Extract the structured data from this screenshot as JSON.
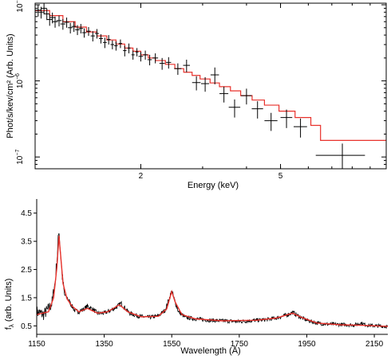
{
  "chart_data": [
    {
      "type": "scatter",
      "xlabel": "Energy (keV)",
      "ylabel": "Phot/s/kev/cm² (Arb. Units)",
      "xscale": "log",
      "yscale": "log",
      "xlim": [
        1.0,
        10.0
      ],
      "ylim": [
        7e-08,
        1.05e-05
      ],
      "x_ticks": [
        {
          "value": 2,
          "label": "2"
        },
        {
          "value": 5,
          "label": "5"
        }
      ],
      "y_ticks": [
        {
          "value": 1e-05,
          "base": "10",
          "exp": "−5"
        },
        {
          "value": 1e-06,
          "base": "10",
          "exp": "−6"
        },
        {
          "value": 1e-07,
          "base": "10",
          "exp": "−7"
        }
      ],
      "grid": false,
      "series": [
        {
          "kind": "data",
          "color": "#000000",
          "points": [
            [
              1.02,
              8.5e-06,
              0.02,
              1.5e-06
            ],
            [
              1.04,
              8e-06,
              0.02,
              1.4e-06
            ],
            [
              1.06,
              9e-06,
              0.02,
              1.5e-06
            ],
            [
              1.08,
              7.6e-06,
              0.02,
              1.3e-06
            ],
            [
              1.1,
              6.4e-06,
              0.02,
              1.1e-06
            ],
            [
              1.12,
              6.8e-06,
              0.02,
              1.1e-06
            ],
            [
              1.14,
              6e-06,
              0.02,
              1e-06
            ],
            [
              1.17,
              6.2e-06,
              0.02,
              1e-06
            ],
            [
              1.2,
              5.6e-06,
              0.02,
              9e-07
            ],
            [
              1.23,
              5.9e-06,
              0.02,
              9e-07
            ],
            [
              1.26,
              5e-06,
              0.02,
              8e-07
            ],
            [
              1.29,
              5.2e-06,
              0.02,
              8e-07
            ],
            [
              1.32,
              4.7e-06,
              0.02,
              7e-07
            ],
            [
              1.35,
              4.9e-06,
              0.02,
              7e-07
            ],
            [
              1.38,
              4.3e-06,
              0.02,
              6e-07
            ],
            [
              1.42,
              4.5e-06,
              0.02,
              6e-07
            ],
            [
              1.46,
              3.9e-06,
              0.02,
              6e-07
            ],
            [
              1.5,
              4.2e-06,
              0.02,
              6e-07
            ],
            [
              1.54,
              3.6e-06,
              0.02,
              5e-07
            ],
            [
              1.58,
              3.2e-06,
              0.02,
              5e-07
            ],
            [
              1.62,
              3.5e-06,
              0.02,
              5e-07
            ],
            [
              1.66,
              3e-06,
              0.02,
              4e-07
            ],
            [
              1.7,
              2.9e-06,
              0.02,
              4e-07
            ],
            [
              1.75,
              3.1e-06,
              0.02,
              4e-07
            ],
            [
              1.8,
              2.5e-06,
              0.02,
              4e-07
            ],
            [
              1.85,
              2.7e-06,
              0.02,
              4e-07
            ],
            [
              1.9,
              2.2e-06,
              0.02,
              3e-07
            ],
            [
              1.95,
              2.4e-06,
              0.02,
              3e-07
            ],
            [
              2.0,
              2.1e-06,
              0.03,
              3e-07
            ],
            [
              2.06,
              2.2e-06,
              0.03,
              3e-07
            ],
            [
              2.12,
              1.9e-06,
              0.03,
              3e-07
            ],
            [
              2.2,
              2e-06,
              0.04,
              3e-07
            ],
            [
              2.3,
              1.7e-06,
              0.04,
              3e-07
            ],
            [
              2.4,
              1.75e-06,
              0.04,
              3e-07
            ],
            [
              2.55,
              1.45e-06,
              0.06,
              2.5e-07
            ],
            [
              2.7,
              1.6e-06,
              0.06,
              3e-07
            ],
            [
              2.88,
              9.5e-07,
              0.08,
              2e-07
            ],
            [
              3.05,
              9.2e-07,
              0.08,
              2e-07
            ],
            [
              3.25,
              1.2e-06,
              0.09,
              3e-07
            ],
            [
              3.45,
              6.8e-07,
              0.1,
              1.6e-07
            ],
            [
              3.7,
              4.5e-07,
              0.14,
              1.2e-07
            ],
            [
              4.0,
              6.4e-07,
              0.14,
              1.5e-07
            ],
            [
              4.3,
              4.3e-07,
              0.16,
              1.1e-07
            ],
            [
              4.7,
              3e-07,
              0.2,
              8e-08
            ],
            [
              5.2,
              3.3e-07,
              0.2,
              9e-08
            ],
            [
              5.7,
              2.5e-07,
              0.25,
              7e-08
            ],
            [
              7.5,
              1.05e-07,
              1.2,
              4.5e-08
            ]
          ]
        },
        {
          "kind": "model",
          "color": "#e8312b",
          "steps": [
            [
              1.0,
              8.4e-06
            ],
            [
              1.1,
              7.2e-06
            ],
            [
              1.2,
              6e-06
            ],
            [
              1.3,
              5.1e-06
            ],
            [
              1.4,
              4.4e-06
            ],
            [
              1.5,
              3.9e-06
            ],
            [
              1.6,
              3.45e-06
            ],
            [
              1.7,
              3.05e-06
            ],
            [
              1.8,
              2.7e-06
            ],
            [
              1.9,
              2.45e-06
            ],
            [
              2.0,
              2.2e-06
            ],
            [
              2.1,
              2e-06
            ],
            [
              2.2,
              1.85e-06
            ],
            [
              2.35,
              1.65e-06
            ],
            [
              2.5,
              1.45e-06
            ],
            [
              2.65,
              1.3e-06
            ],
            [
              2.8,
              1.18e-06
            ],
            [
              2.95,
              1.06e-06
            ],
            [
              3.15,
              9.4e-07
            ],
            [
              3.35,
              8.4e-07
            ],
            [
              3.6,
              7.4e-07
            ],
            [
              3.85,
              6.4e-07
            ],
            [
              4.15,
              5.6e-07
            ],
            [
              4.5,
              4.8e-07
            ],
            [
              4.95,
              4e-07
            ],
            [
              5.5,
              3.3e-07
            ],
            [
              6.1,
              2.6e-07
            ],
            [
              6.5,
              1.65e-07
            ],
            [
              10.0,
              1.65e-07
            ]
          ]
        }
      ]
    },
    {
      "type": "line",
      "xlabel": "Wavelength (Å)",
      "ylabel_main": "f",
      "ylabel_sub": "λ",
      "ylabel_rest": " (arb. Units)",
      "xlim": [
        1150,
        2190
      ],
      "ylim": [
        0.2,
        5.0
      ],
      "x_ticks": [
        1150,
        1350,
        1550,
        1750,
        1950,
        2150
      ],
      "x_tick_labels": [
        "1150",
        "1350",
        "1550",
        "1750",
        "1950",
        "2150"
      ],
      "y_ticks": [
        0.5,
        1.5,
        2.5,
        3.5,
        4.5
      ],
      "y_tick_labels": [
        "0.5",
        "1.5",
        "2.5",
        "3.5",
        "4.5"
      ],
      "grid": false,
      "series": [
        {
          "kind": "spectrum",
          "color": "#000000",
          "points": [
            [
              1150,
              1.0
            ],
            [
              1170,
              0.9
            ],
            [
              1185,
              1.1
            ],
            [
              1195,
              1.3
            ],
            [
              1205,
              2.1
            ],
            [
              1212,
              3.2
            ],
            [
              1216,
              3.95
            ],
            [
              1220,
              3.2
            ],
            [
              1226,
              2.2
            ],
            [
              1232,
              1.6
            ],
            [
              1240,
              1.5
            ],
            [
              1250,
              1.3
            ],
            [
              1262,
              1.05
            ],
            [
              1275,
              1.0
            ],
            [
              1290,
              1.1
            ],
            [
              1300,
              1.2
            ],
            [
              1315,
              1.1
            ],
            [
              1330,
              0.95
            ],
            [
              1350,
              0.95
            ],
            [
              1370,
              1.05
            ],
            [
              1390,
              1.2
            ],
            [
              1400,
              1.3
            ],
            [
              1410,
              1.15
            ],
            [
              1425,
              0.95
            ],
            [
              1450,
              0.85
            ],
            [
              1480,
              0.8
            ],
            [
              1510,
              0.85
            ],
            [
              1530,
              1.05
            ],
            [
              1545,
              1.55
            ],
            [
              1550,
              1.75
            ],
            [
              1556,
              1.5
            ],
            [
              1570,
              1.0
            ],
            [
              1590,
              0.8
            ],
            [
              1620,
              0.75
            ],
            [
              1660,
              0.7
            ],
            [
              1700,
              0.68
            ],
            [
              1750,
              0.65
            ],
            [
              1800,
              0.7
            ],
            [
              1830,
              0.72
            ],
            [
              1860,
              0.78
            ],
            [
              1890,
              0.88
            ],
            [
              1908,
              0.98
            ],
            [
              1925,
              0.85
            ],
            [
              1950,
              0.7
            ],
            [
              1980,
              0.6
            ],
            [
              2010,
              0.56
            ],
            [
              2050,
              0.55
            ],
            [
              2090,
              0.53
            ],
            [
              2110,
              0.6
            ],
            [
              2130,
              0.52
            ],
            [
              2160,
              0.5
            ],
            [
              2190,
              0.48
            ]
          ]
        },
        {
          "kind": "model",
          "color": "#e8312b",
          "points": [
            [
              1150,
              0.9
            ],
            [
              1185,
              1.0
            ],
            [
              1200,
              1.5
            ],
            [
              1210,
              2.6
            ],
            [
              1216,
              3.7
            ],
            [
              1221,
              3.0
            ],
            [
              1228,
              2.0
            ],
            [
              1240,
              1.45
            ],
            [
              1255,
              1.2
            ],
            [
              1275,
              1.0
            ],
            [
              1300,
              1.12
            ],
            [
              1330,
              0.95
            ],
            [
              1360,
              1.0
            ],
            [
              1395,
              1.25
            ],
            [
              1420,
              1.0
            ],
            [
              1460,
              0.82
            ],
            [
              1510,
              0.84
            ],
            [
              1535,
              1.1
            ],
            [
              1550,
              1.72
            ],
            [
              1560,
              1.35
            ],
            [
              1580,
              0.9
            ],
            [
              1620,
              0.75
            ],
            [
              1700,
              0.68
            ],
            [
              1800,
              0.7
            ],
            [
              1860,
              0.78
            ],
            [
              1908,
              0.95
            ],
            [
              1935,
              0.8
            ],
            [
              1980,
              0.6
            ],
            [
              2050,
              0.54
            ],
            [
              2120,
              0.52
            ],
            [
              2190,
              0.48
            ]
          ]
        }
      ]
    }
  ]
}
